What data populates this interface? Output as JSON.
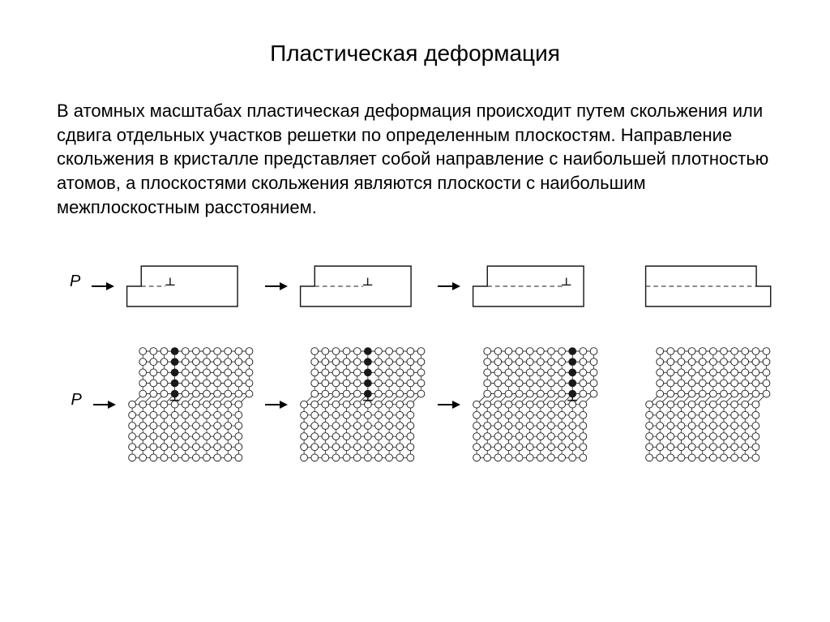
{
  "title": "Пластическая деформация",
  "paragraph": "В атомных масштабах пластическая деформация происходит путем скольжения или сдвига отдельных участков решетки по определенным плоскостям. Направление скольжения в кристалле представляет собой направление с наибольшей плотностью атомов, а плоскостями скольжения являются плоскости с наибольшим межплоскостным расстоянием.",
  "force_label": "P",
  "colors": {
    "stroke": "#1a1a1a",
    "background": "#ffffff",
    "atom_fill": "#ffffff",
    "atom_dark": "#1a1a1a"
  },
  "row1": {
    "block": {
      "w": 170,
      "h": 62,
      "step_w": 22,
      "step_h": 16
    },
    "stages": [
      {
        "step_offset": 0,
        "dash_end": 0.25,
        "disloc_x": 0.3
      },
      {
        "step_offset": 0,
        "dash_end": 0.5,
        "disloc_x": 0.55
      },
      {
        "step_offset": 0,
        "dash_end": 0.78,
        "disloc_x": 0.82
      },
      {
        "step_offset": 1,
        "dash_end": 1.0,
        "disloc_x": null
      }
    ]
  },
  "row2": {
    "lattice": {
      "cols": 11,
      "rows": 11,
      "spacing": 15.5,
      "atom_r": 5.2
    },
    "top_rows": 5,
    "stages": [
      {
        "top_shift": 1,
        "disloc_col": 3
      },
      {
        "top_shift": 1,
        "disloc_col": 5
      },
      {
        "top_shift": 1,
        "disloc_col": 8
      },
      {
        "top_shift": 1,
        "disloc_col": null
      }
    ]
  }
}
